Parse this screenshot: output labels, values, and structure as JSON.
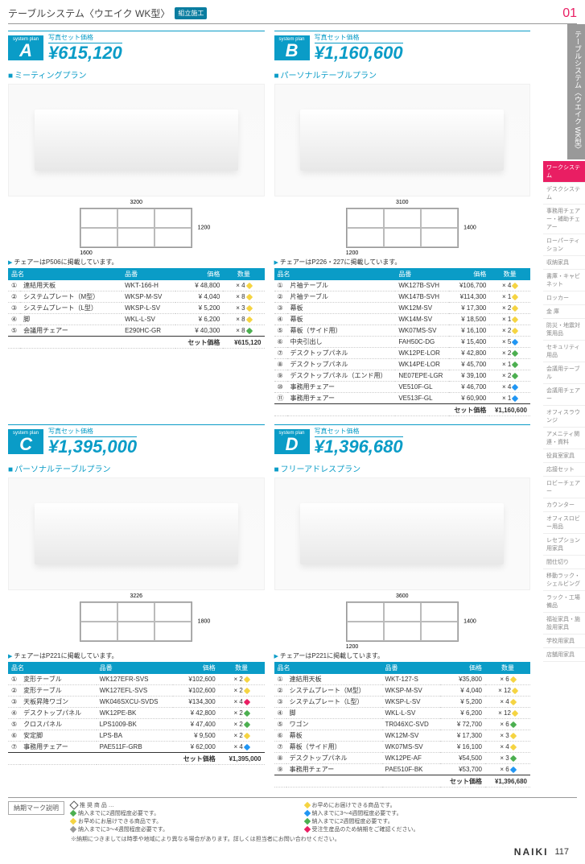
{
  "header_title": "テーブルシステム〈ウエイク WK型〉",
  "header_badge": "組立施工",
  "page_section": "01",
  "side_tab": "テーブルシステム〈ウエイク WK型〉",
  "side_menu": [
    "ワークシステム",
    "デスクシステム",
    "事務用チェアー・補助チェアー",
    "ローパーティション",
    "収納家具",
    "書庫・キャビネット",
    "ロッカー",
    "金 庫",
    "防災・地震対策用品",
    "セキュリティ用品",
    "会議用テーブル",
    "会議用チェアー",
    "オフィスラウンジ",
    "アメニティ関連・資料",
    "役員室家具",
    "応接セット",
    "ロビーチェアー",
    "カウンター",
    "オフィスロビー用品",
    "レセプション用家具",
    "間仕切り",
    "移動ラック・シェルビング",
    "ラック・工場備品",
    "福祉家具・施設用家具",
    "学校用家具",
    "店舗用家具"
  ],
  "side_menu_highlight_index": 0,
  "price_label_text": "写真セット価格",
  "plan_badge_top": "system plan",
  "th_name": "品名",
  "th_code": "品番",
  "th_price": "価格",
  "th_qty": "数量",
  "total_label": "セット価格",
  "plans": [
    {
      "letter": "A",
      "price": "¥615,120",
      "subtitle": "ミーティングプラン",
      "chair_note": "チェアーはP506に掲載しています。",
      "diagram": {
        "w": "3200",
        "h": "1200",
        "w2": "1600"
      },
      "rows": [
        {
          "n": "①",
          "name": "連結用天板",
          "code": "WKT-166-H",
          "price": "¥ 48,800",
          "qty": "× 4",
          "dot": "y"
        },
        {
          "n": "②",
          "name": "システムプレート（M型）",
          "code": "WKSP-M-SV",
          "price": "¥ 4,040",
          "qty": "× 8",
          "dot": "y"
        },
        {
          "n": "③",
          "name": "システムプレート（L型）",
          "code": "WKSP-L-SV",
          "price": "¥ 5,200",
          "qty": "× 3",
          "dot": "y"
        },
        {
          "n": "④",
          "name": "脚",
          "code": "WKL-L-SV",
          "price": "¥ 6,200",
          "qty": "× 8",
          "dot": "y"
        },
        {
          "n": "⑤",
          "name": "会議用チェアー",
          "code": "E290HC-GR",
          "price": "¥ 40,300",
          "qty": "× 8",
          "dot": "g"
        }
      ],
      "total": "¥615,120"
    },
    {
      "letter": "B",
      "price": "¥1,160,600",
      "subtitle": "パーソナルテーブルプラン",
      "chair_note": "チェアーはP226・227に掲載しています。",
      "diagram": {
        "w": "3100",
        "h": "1400",
        "w2": "1200"
      },
      "rows": [
        {
          "n": "①",
          "name": "片袖テーブル",
          "code": "WK127B-SVH",
          "price": "¥106,700",
          "qty": "× 4",
          "dot": "y"
        },
        {
          "n": "②",
          "name": "片袖テーブル",
          "code": "WK147B-SVH",
          "price": "¥114,300",
          "qty": "× 1",
          "dot": "y"
        },
        {
          "n": "③",
          "name": "幕板",
          "code": "WK12M-SV",
          "price": "¥ 17,300",
          "qty": "× 2",
          "dot": "y"
        },
        {
          "n": "④",
          "name": "幕板",
          "code": "WK14M-SV",
          "price": "¥ 18,500",
          "qty": "× 1",
          "dot": "y"
        },
        {
          "n": "⑤",
          "name": "幕板（サイド用）",
          "code": "WK07MS-SV",
          "price": "¥ 16,100",
          "qty": "× 2",
          "dot": "y"
        },
        {
          "n": "⑥",
          "name": "中央引出し",
          "code": "FAH50C-DG",
          "price": "¥ 15,400",
          "qty": "× 5",
          "dot": "b"
        },
        {
          "n": "⑦",
          "name": "デスクトップパネル",
          "code": "WK12PE-LOR",
          "price": "¥ 42,800",
          "qty": "× 2",
          "dot": "g"
        },
        {
          "n": "⑧",
          "name": "デスクトップパネル",
          "code": "WK14PE-LOR",
          "price": "¥ 45,700",
          "qty": "× 1",
          "dot": "g"
        },
        {
          "n": "⑨",
          "name": "デスクトップパネル（エンド用）",
          "code": "NE07EPE-LGR",
          "price": "¥ 39,100",
          "qty": "× 2",
          "dot": "g"
        },
        {
          "n": "⑩",
          "name": "事務用チェアー",
          "code": "VE510F-GL",
          "price": "¥ 46,700",
          "qty": "× 4",
          "dot": "b"
        },
        {
          "n": "⑪",
          "name": "事務用チェアー",
          "code": "VE513F-GL",
          "price": "¥ 60,900",
          "qty": "× 1",
          "dot": "b"
        }
      ],
      "total": "¥1,160,600"
    },
    {
      "letter": "C",
      "price": "¥1,395,000",
      "subtitle": "パーソナルテーブルプラン",
      "chair_note": "チェアーはP221に掲載しています。",
      "diagram": {
        "w": "3226",
        "h": "1800"
      },
      "rows": [
        {
          "n": "①",
          "name": "変形テーブル",
          "code": "WK127EFR-SVS",
          "price": "¥102,600",
          "qty": "× 2",
          "dot": "y"
        },
        {
          "n": "②",
          "name": "変形テーブル",
          "code": "WK127EFL-SVS",
          "price": "¥102,600",
          "qty": "× 2",
          "dot": "y"
        },
        {
          "n": "③",
          "name": "天板昇降ワゴン",
          "code": "WK046SXCU-SVDS",
          "price": "¥134,300",
          "qty": "× 4",
          "dot": "p"
        },
        {
          "n": "④",
          "name": "デスクトップパネル",
          "code": "WK12PE-BK",
          "price": "¥ 42,800",
          "qty": "× 2",
          "dot": "g"
        },
        {
          "n": "⑤",
          "name": "クロスパネル",
          "code": "LPS1009-BK",
          "price": "¥ 47,400",
          "qty": "× 2",
          "dot": "g"
        },
        {
          "n": "⑥",
          "name": "安定脚",
          "code": "LPS-BA",
          "price": "¥ 9,500",
          "qty": "× 2",
          "dot": "y"
        },
        {
          "n": "⑦",
          "name": "事務用チェアー",
          "code": "PAE511F-GRB",
          "price": "¥ 62,000",
          "qty": "× 4",
          "dot": "b"
        }
      ],
      "total": "¥1,395,000"
    },
    {
      "letter": "D",
      "price": "¥1,396,680",
      "subtitle": "フリーアドレスプラン",
      "chair_note": "チェアーはP221に掲載しています。",
      "diagram": {
        "w": "3600",
        "h": "1400",
        "w2": "1200"
      },
      "rows": [
        {
          "n": "①",
          "name": "連結用天板",
          "code": "WKT-127-S",
          "price": "¥35,800",
          "qty": "× 6",
          "dot": "y"
        },
        {
          "n": "②",
          "name": "システムプレート（M型）",
          "code": "WKSP-M-SV",
          "price": "¥ 4,040",
          "qty": "× 12",
          "dot": "y"
        },
        {
          "n": "③",
          "name": "システムプレート（L型）",
          "code": "WKSP-L-SV",
          "price": "¥ 5,200",
          "qty": "× 4",
          "dot": "y"
        },
        {
          "n": "④",
          "name": "脚",
          "code": "WKL-L-SV",
          "price": "¥ 6,200",
          "qty": "× 12",
          "dot": "y"
        },
        {
          "n": "⑤",
          "name": "ワゴン",
          "code": "TR046XC-SVD",
          "price": "¥ 72,700",
          "qty": "× 6",
          "dot": "g"
        },
        {
          "n": "⑥",
          "name": "幕板",
          "code": "WK12M-SV",
          "price": "¥ 17,300",
          "qty": "× 3",
          "dot": "y"
        },
        {
          "n": "⑦",
          "name": "幕板（サイド用）",
          "code": "WK07MS-SV",
          "price": "¥ 16,100",
          "qty": "× 4",
          "dot": "y"
        },
        {
          "n": "⑧",
          "name": "デスクトップパネル",
          "code": "WK12PE-AF",
          "price": "¥54,500",
          "qty": "× 3",
          "dot": "g"
        },
        {
          "n": "⑨",
          "name": "事務用チェアー",
          "code": "PAE510F-BK",
          "price": "¥53,700",
          "qty": "× 6",
          "dot": "b"
        }
      ],
      "total": "¥1,396,680"
    }
  ],
  "footer_badge": "納期マーク説明",
  "footer_notes": [
    {
      "cls": "fg-recommend",
      "text": "推 奨 商 品 …"
    },
    {
      "cls": "fg-y",
      "text": "お早めにお届けできる商品です。"
    },
    {
      "cls": "fg-g",
      "text": "納入までに2週間程度必要です。"
    },
    {
      "cls": "fg-b",
      "text": "納入までに3〜4週間程度必要です。"
    },
    {
      "cls": "fg-y",
      "text": "お早めにお届けできる商品です。"
    },
    {
      "cls": "fg-g",
      "text": "納入までに2週間程度必要です。"
    },
    {
      "cls": "fg-gray",
      "text": "納入までに3〜4週間程度必要です。"
    },
    {
      "cls": "fg-p",
      "text": "受注生産品のため納期をご確認ください。"
    }
  ],
  "footer_disclaimer": "※納期につきましては時季や地域により異なる場合があります。詳しくは担当者にお問い合わせください。",
  "brand": "NAIKI",
  "page_number": "117"
}
